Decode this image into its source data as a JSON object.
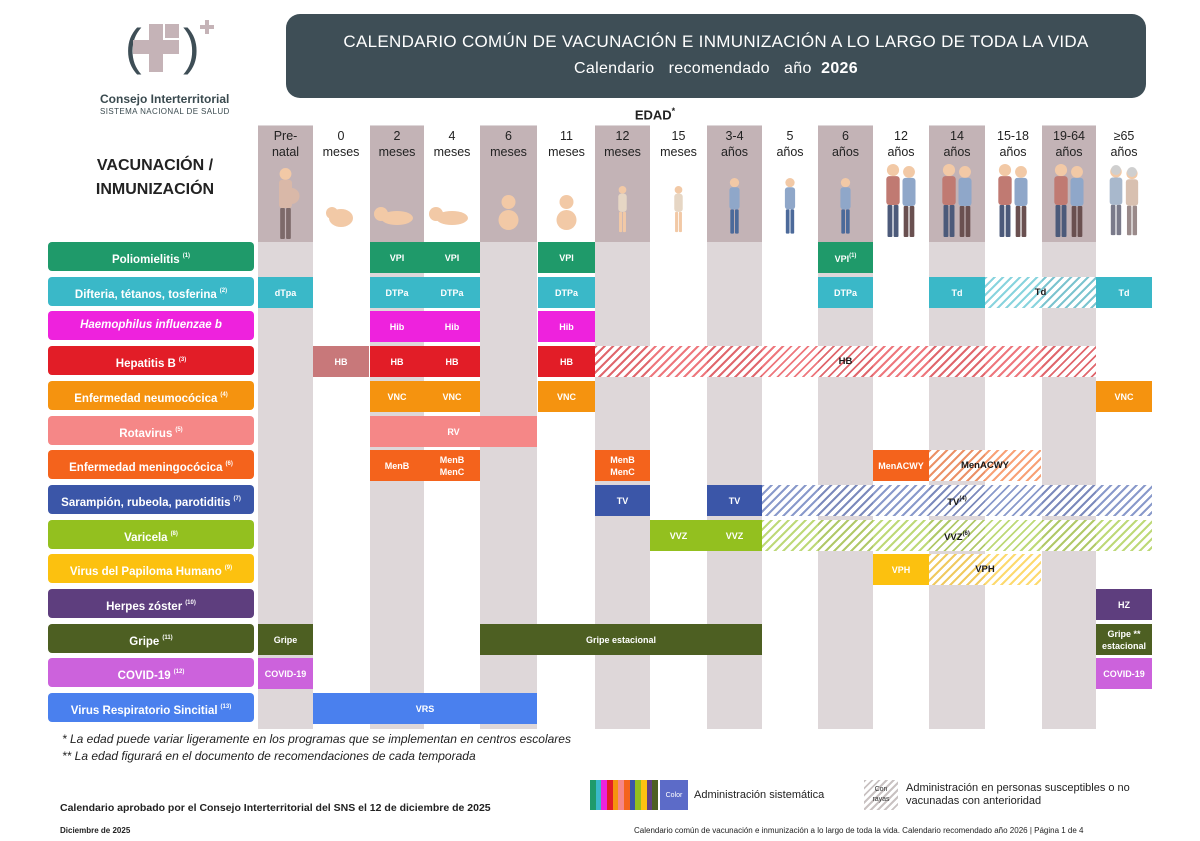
{
  "logo": {
    "title": "Consejo Interterritorial",
    "subtitle": "SISTEMA NACIONAL DE SALUD"
  },
  "header": {
    "line1": "CALENDARIO COMÚN DE VACUNACIÓN E INMUNIZACIÓN A LO LARGO DE TODA LA VIDA",
    "line2_prefix": "Calendario   recomendado   año  ",
    "line2_year": "2026"
  },
  "edad_label": "EDAD",
  "edad_mark": "*",
  "section_title_1": "VACUNACIÓN /",
  "section_title_2": "INMUNIZACIÓN",
  "columns": [
    {
      "l1": "Pre-",
      "l2": "natal"
    },
    {
      "l1": "0",
      "l2": "meses"
    },
    {
      "l1": "2",
      "l2": "meses"
    },
    {
      "l1": "4",
      "l2": "meses"
    },
    {
      "l1": "6",
      "l2": "meses"
    },
    {
      "l1": "11",
      "l2": "meses"
    },
    {
      "l1": "12",
      "l2": "meses"
    },
    {
      "l1": "15",
      "l2": "meses"
    },
    {
      "l1": "3-4",
      "l2": "años"
    },
    {
      "l1": "5",
      "l2": "años"
    },
    {
      "l1": "6",
      "l2": "años"
    },
    {
      "l1": "12",
      "l2": "años"
    },
    {
      "l1": "14",
      "l2": "años"
    },
    {
      "l1": "15-18",
      "l2": "años"
    },
    {
      "l1": "19-64",
      "l2": "años"
    },
    {
      "l1": "≥65",
      "l2": "años"
    }
  ],
  "rows": [
    {
      "label": "Poliomielitis",
      "note": "(1)",
      "color": "#1f9a6a",
      "cells": [
        {
          "text": "VPI",
          "from": 2,
          "to": 2,
          "color": "#1f9a6a"
        },
        {
          "text": "VPI",
          "from": 3,
          "to": 3,
          "color": "#1f9a6a"
        },
        {
          "text": "VPI",
          "from": 5,
          "to": 5,
          "color": "#1f9a6a"
        },
        {
          "text": "VPI",
          "note": "(1)",
          "from": 10,
          "to": 10,
          "color": "#1f9a6a"
        }
      ]
    },
    {
      "label": "Difteria, tétanos, tosferina",
      "note": "(2)",
      "color": "#3ab8c8",
      "cells": [
        {
          "text": "dTpa",
          "from": 0,
          "to": 0,
          "color": "#3ab8c8"
        },
        {
          "text": "DTPa",
          "from": 2,
          "to": 2,
          "color": "#3ab8c8"
        },
        {
          "text": "DTPa",
          "from": 3,
          "to": 3,
          "color": "#3ab8c8"
        },
        {
          "text": "DTPa",
          "from": 5,
          "to": 5,
          "color": "#3ab8c8"
        },
        {
          "text": "DTPa",
          "from": 10,
          "to": 10,
          "color": "#3ab8c8"
        },
        {
          "text": "Td",
          "from": 12,
          "to": 12,
          "color": "#3ab8c8"
        },
        {
          "text": "Td",
          "from": 13,
          "to": 14,
          "color": "#3ab8c8",
          "striped": true
        },
        {
          "text": "Td",
          "from": 15,
          "to": 15,
          "color": "#3ab8c8"
        }
      ]
    },
    {
      "label": "Haemophilus influenzae b",
      "italic": true,
      "color": "#ee22dd",
      "cells": [
        {
          "text": "Hib",
          "from": 2,
          "to": 2,
          "color": "#ee22dd"
        },
        {
          "text": "Hib",
          "from": 3,
          "to": 3,
          "color": "#ee22dd"
        },
        {
          "text": "Hib",
          "from": 5,
          "to": 5,
          "color": "#ee22dd"
        }
      ]
    },
    {
      "label": "Hepatitis B",
      "note": "(3)",
      "color": "#e21d27",
      "cells": [
        {
          "text": "HB",
          "from": 1,
          "to": 1,
          "color": "#c8787a"
        },
        {
          "text": "HB",
          "from": 2,
          "to": 2,
          "color": "#e21d27"
        },
        {
          "text": "HB",
          "from": 3,
          "to": 3,
          "color": "#e21d27"
        },
        {
          "text": "HB",
          "from": 5,
          "to": 5,
          "color": "#e21d27"
        },
        {
          "text": "HB",
          "from": 6,
          "to": 14,
          "color": "#e21d27",
          "striped": true
        }
      ]
    },
    {
      "label": "Enfermedad neumocócica",
      "note": "(4)",
      "color": "#f5930f",
      "cells": [
        {
          "text": "VNC",
          "from": 2,
          "to": 2,
          "color": "#f5930f"
        },
        {
          "text": "VNC",
          "from": 3,
          "to": 3,
          "color": "#f5930f"
        },
        {
          "text": "VNC",
          "from": 5,
          "to": 5,
          "color": "#f5930f"
        },
        {
          "text": "VNC",
          "from": 15,
          "to": 15,
          "color": "#f5930f"
        }
      ]
    },
    {
      "label": "Rotavirus",
      "note": "(5)",
      "color": "#f58787",
      "cells": [
        {
          "text": "RV",
          "from": 2,
          "to": 4,
          "color": "#f58787"
        }
      ]
    },
    {
      "label": "Enfermedad meningocócica",
      "note": "(6)",
      "color": "#f4631c",
      "cells": [
        {
          "text": "MenB",
          "from": 2,
          "to": 2,
          "color": "#f4631c"
        },
        {
          "text": "MenB",
          "text2": "MenC",
          "from": 3,
          "to": 3,
          "color": "#f4631c"
        },
        {
          "text": "MenB",
          "text2": "MenC",
          "from": 6,
          "to": 6,
          "color": "#f4631c"
        },
        {
          "text": "MenACWY",
          "from": 11,
          "to": 11,
          "color": "#f4631c"
        },
        {
          "text": "MenACWY",
          "from": 12,
          "to": 13,
          "color": "#f4631c",
          "striped": true
        }
      ]
    },
    {
      "label": "Sarampión, rubeola, parotiditis",
      "note": "(7)",
      "color": "#3b56a8",
      "cells": [
        {
          "text": "TV",
          "from": 6,
          "to": 6,
          "color": "#3b56a8"
        },
        {
          "text": "TV",
          "from": 8,
          "to": 8,
          "color": "#3b56a8"
        },
        {
          "text": "TV",
          "note": "(4)",
          "from": 9,
          "to": 15,
          "color": "#3b56a8",
          "striped": true
        }
      ]
    },
    {
      "label": "Varicela",
      "note": "(8)",
      "color": "#93c01f",
      "cells": [
        {
          "text": "VVZ",
          "from": 7,
          "to": 7,
          "color": "#93c01f"
        },
        {
          "text": "VVZ",
          "from": 8,
          "to": 8,
          "color": "#93c01f"
        },
        {
          "text": "VVZ",
          "note": "(6)",
          "from": 9,
          "to": 15,
          "color": "#93c01f",
          "striped": true
        }
      ]
    },
    {
      "label": "Virus del Papiloma Humano",
      "note": "(9)",
      "color": "#fcc10f",
      "cells": [
        {
          "text": "VPH",
          "from": 11,
          "to": 11,
          "color": "#fcc10f"
        },
        {
          "text": "VPH",
          "from": 12,
          "to": 13,
          "color": "#fcc10f",
          "striped": true
        }
      ]
    },
    {
      "label": "Herpes zóster",
      "note": "(10)",
      "color": "#5e3e7e",
      "cells": [
        {
          "text": "HZ",
          "from": 15,
          "to": 15,
          "color": "#5e3e7e"
        }
      ]
    },
    {
      "label": "Gripe",
      "note": "(11)",
      "color": "#4d5f22",
      "cells": [
        {
          "text": "Gripe",
          "from": 0,
          "to": 0,
          "color": "#4d5f22"
        },
        {
          "text": "Gripe estacional",
          "from": 4,
          "to": 8,
          "color": "#4d5f22"
        },
        {
          "text": "Gripe **",
          "text2": "estacional",
          "from": 15,
          "to": 15,
          "color": "#4d5f22"
        }
      ]
    },
    {
      "label": "COVID-19",
      "note": "(12)",
      "color": "#cc62dc",
      "cells": [
        {
          "text": "COVID-19",
          "from": 0,
          "to": 0,
          "color": "#cc62dc"
        },
        {
          "text": "COVID-19",
          "from": 15,
          "to": 15,
          "color": "#cc62dc"
        }
      ]
    },
    {
      "label": "Virus Respiratorio Sincitial",
      "note": "(13)",
      "color": "#4a80ee",
      "cells": [
        {
          "text": "VRS",
          "from": 1,
          "to": 4,
          "color": "#4a80ee"
        }
      ]
    }
  ],
  "footnote_1": "* La edad puede variar ligeramente en los programas que se implementan en centros escolares",
  "footnote_2": "** La edad figurará en el documento de recomendaciones de cada temporada",
  "approved": "Calendario aprobado por el Consejo Interterritorial del SNS el 12 de diciembre de 2025",
  "legend": {
    "color_box": "Color",
    "systematic": "Administración sistemática",
    "stripes_box_1": "Con",
    "stripes_box_2": "rayas",
    "susceptible": "Administración en personas susceptibles o no vacunadas con anterioridad",
    "strip_colors": [
      "#1f9a6a",
      "#3ab8c8",
      "#ee22dd",
      "#e21d27",
      "#f5930f",
      "#f58787",
      "#f4631c",
      "#3b56a8",
      "#93c01f",
      "#fcc10f",
      "#5e3e7e",
      "#4d5f22"
    ]
  },
  "bottom_left": "Diciembre de 2025",
  "bottom_right": "Calendario común de vacunación e inmunización a lo largo de toda la vida. Calendario recomendado año 2026 | Página 1 de 4"
}
